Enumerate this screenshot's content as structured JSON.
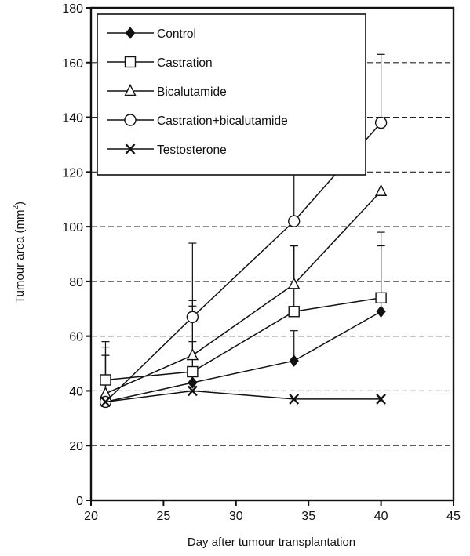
{
  "chart_data": {
    "type": "line",
    "xlabel": "Day after tumour transplantation",
    "ylabel_main": "Tumour area (mm",
    "ylabel_sup": "2",
    "ylabel_end": ")",
    "xlim": [
      20,
      45
    ],
    "ylim": [
      0,
      180
    ],
    "x_ticks": [
      "20",
      "25",
      "30",
      "35",
      "40",
      "45"
    ],
    "y_ticks": [
      "0",
      "20",
      "40",
      "60",
      "80",
      "100",
      "120",
      "140",
      "160",
      "180"
    ],
    "grid": "horizontal dashed",
    "legend_position": "top-left",
    "x": [
      21,
      27,
      34,
      40
    ],
    "series": [
      {
        "name": "Control",
        "marker": "filled-diamond",
        "values": [
          36,
          43,
          51,
          69
        ],
        "err": [
          17,
          15,
          11,
          24
        ]
      },
      {
        "name": "Castration",
        "marker": "open-square",
        "values": [
          44,
          47,
          69,
          74
        ],
        "err": [
          14,
          26,
          24,
          24
        ]
      },
      {
        "name": "Bicalutamide",
        "marker": "open-triangle",
        "values": [
          39,
          53,
          79,
          113
        ],
        "err": [
          14,
          18,
          14,
          0
        ]
      },
      {
        "name": "Castration+bicalutamide",
        "marker": "open-circle",
        "values": [
          36,
          67,
          102,
          138
        ],
        "err": [
          20,
          27,
          25,
          25
        ]
      },
      {
        "name": "Testosterone",
        "marker": "x",
        "values": [
          36,
          40,
          37,
          37
        ],
        "err": [
          0,
          0,
          0,
          0
        ]
      }
    ]
  }
}
